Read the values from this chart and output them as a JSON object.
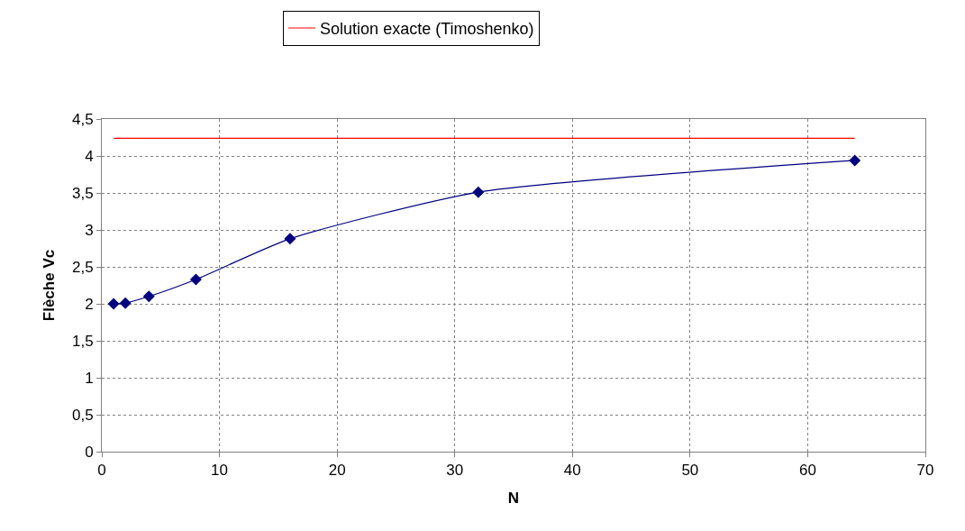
{
  "chart_data": {
    "type": "line",
    "xlabel": "N",
    "ylabel": "Flèche Vc",
    "series": [
      {
        "color": "#000080",
        "x": [
          1,
          2,
          4,
          8,
          16,
          32,
          64
        ],
        "values": [
          2.0,
          2.01,
          2.1,
          2.33,
          2.88,
          3.51,
          3.94
        ],
        "marker": "diamond"
      },
      {
        "name": "Solution exacte (Timoshenko)",
        "color": "#ff0000",
        "x": [
          1,
          64
        ],
        "values": [
          4.24,
          4.24
        ],
        "marker": "none"
      }
    ],
    "xlim": [
      0,
      70
    ],
    "xticks": [
      0,
      10,
      20,
      30,
      40,
      50,
      60,
      70
    ],
    "ylim": [
      0,
      4.5
    ],
    "yticks": [
      0,
      {
        "value": 0.5,
        "label": "0,5"
      },
      1,
      {
        "value": 1.5,
        "label": "1,5"
      },
      2,
      {
        "value": 2.5,
        "label": "2,5"
      },
      3,
      {
        "value": 3.5,
        "label": "3,5"
      },
      4,
      {
        "value": 4.5,
        "label": "4,5"
      }
    ],
    "grid": true,
    "legend": "top",
    "line_style": "solid"
  }
}
